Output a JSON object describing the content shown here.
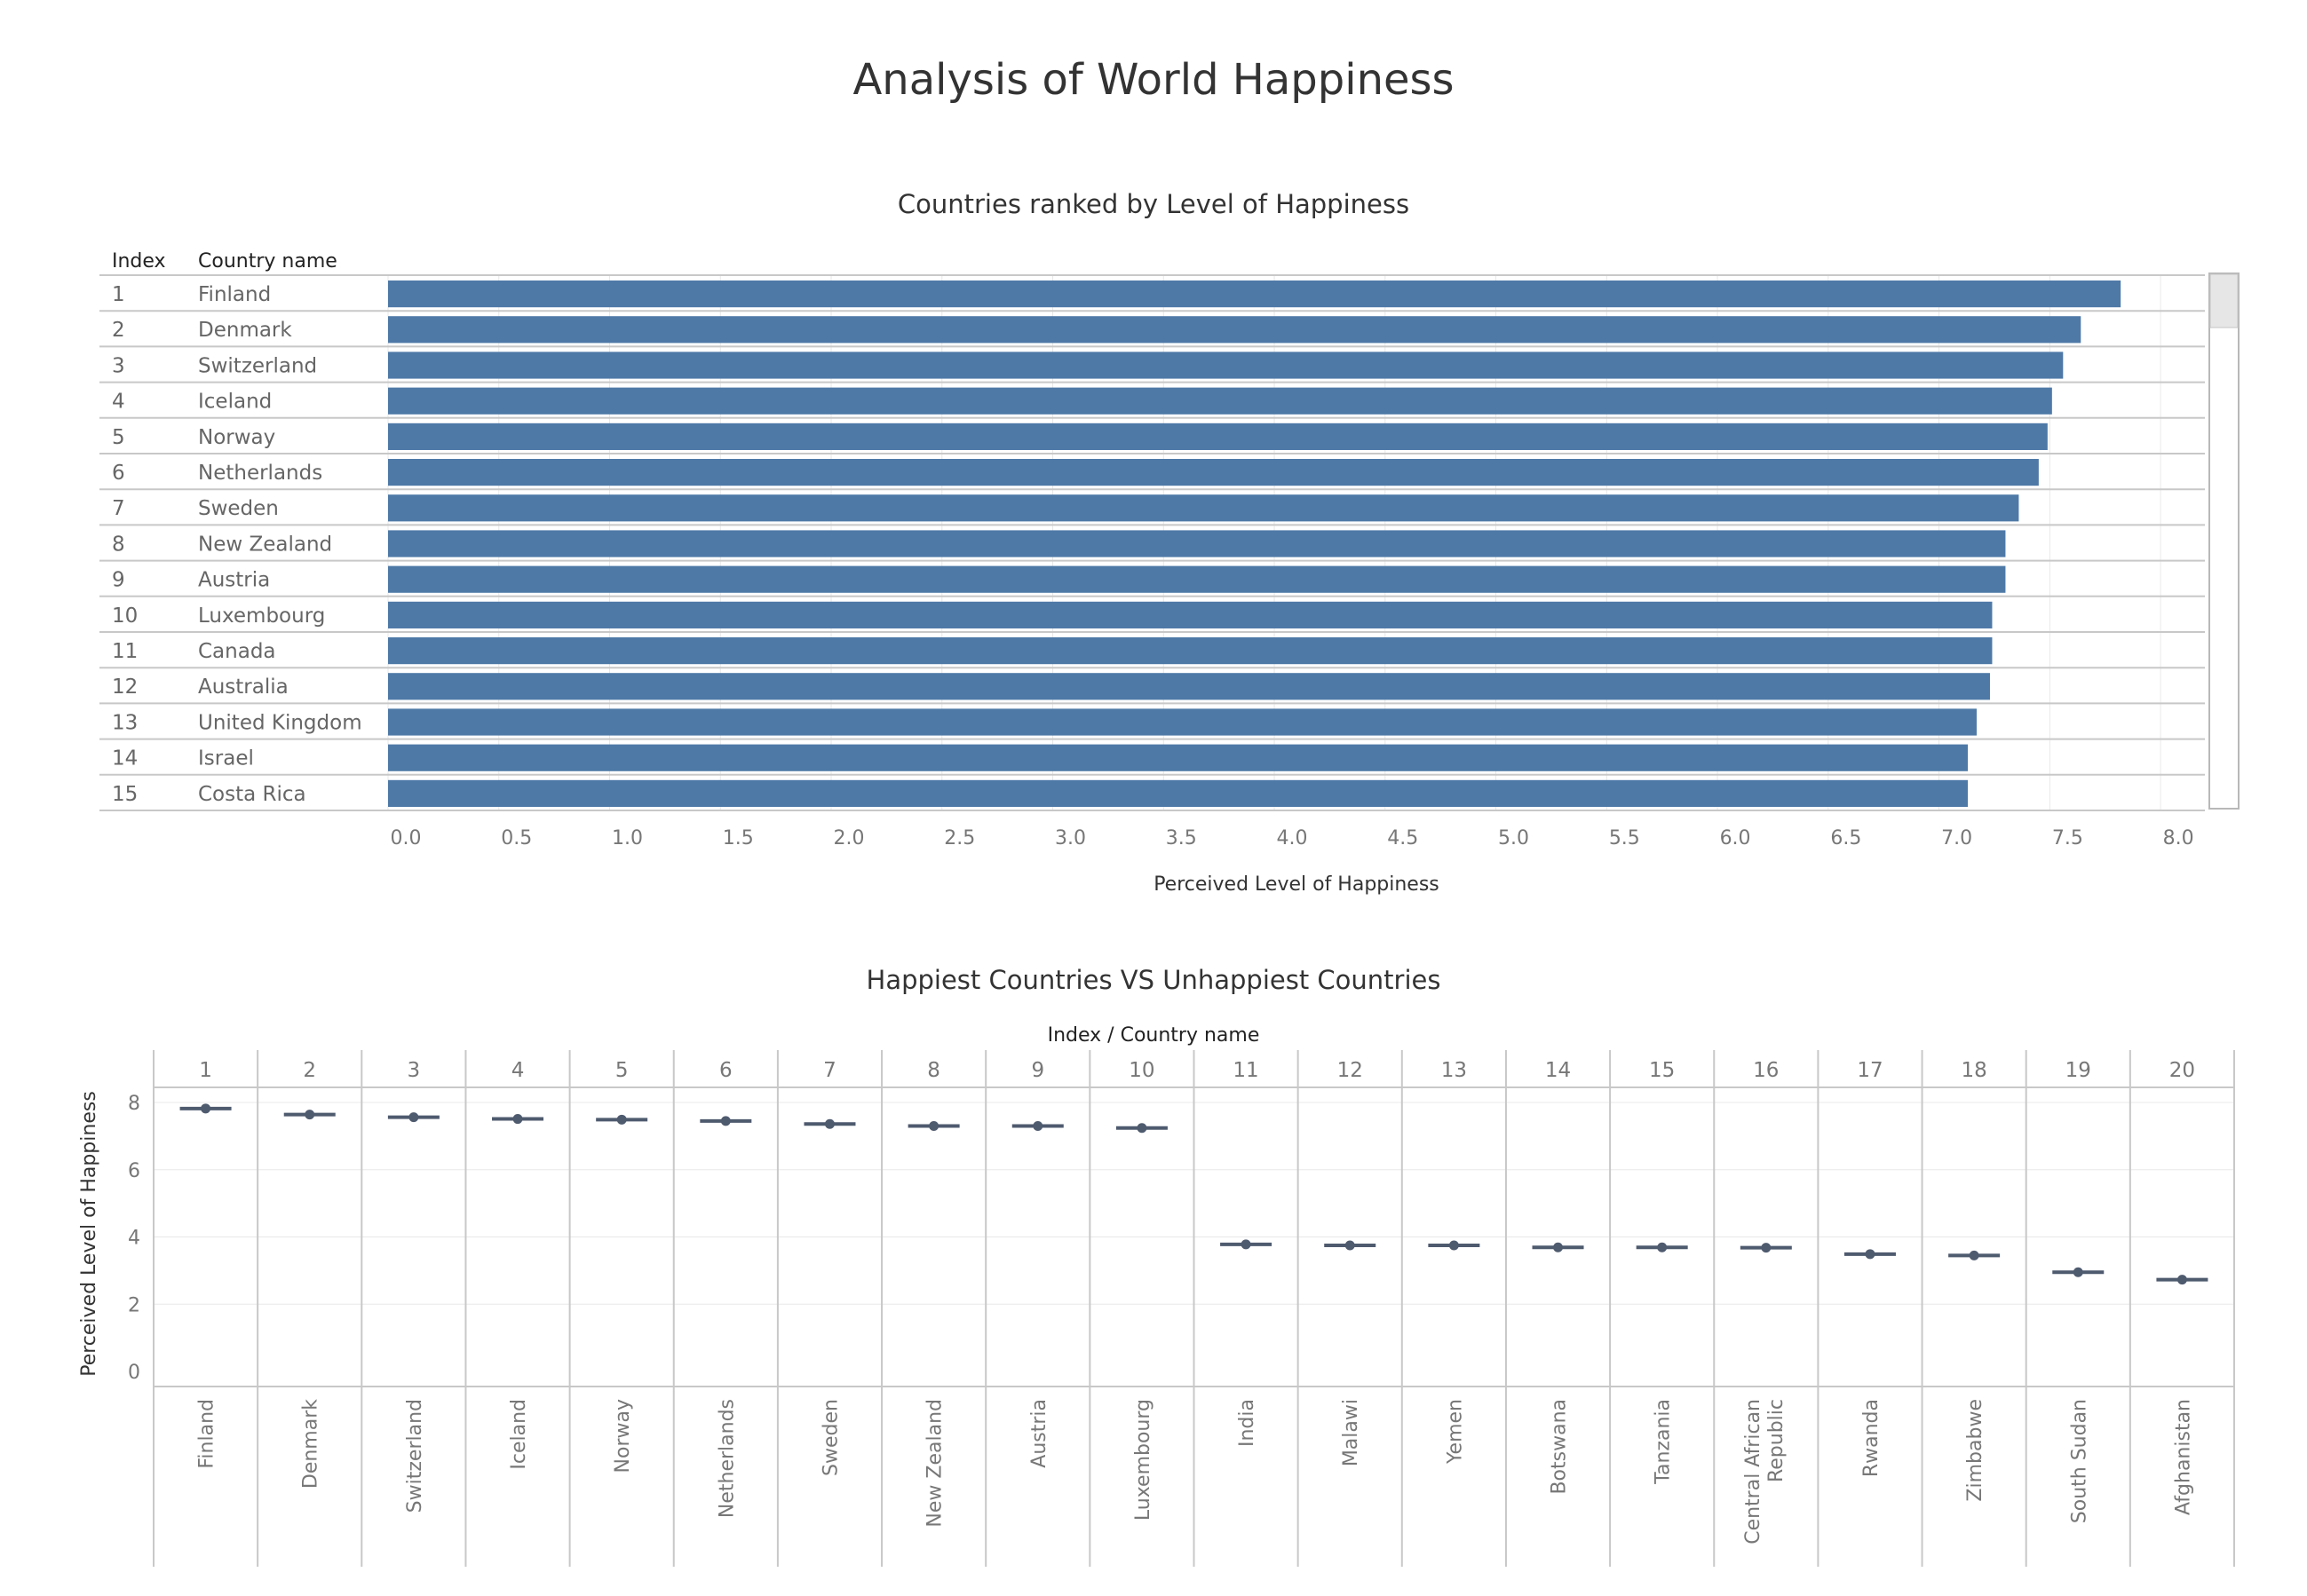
{
  "dashboard_title": "Analysis of World Happiness",
  "colors": {
    "bar": "#4e79a7",
    "mark": "#4e5a6e",
    "grid": "#e8e8e8",
    "divider": "#c8c8c8"
  },
  "chart_data": [
    {
      "type": "bar",
      "orientation": "horizontal",
      "title": "Countries ranked by Level of Happiness",
      "row_headers": [
        "Index",
        "Country name"
      ],
      "index": [
        "1",
        "2",
        "3",
        "4",
        "5",
        "6",
        "7",
        "8",
        "9",
        "10",
        "11",
        "12",
        "13",
        "14",
        "15"
      ],
      "categories": [
        "Finland",
        "Denmark",
        "Switzerland",
        "Iceland",
        "Norway",
        "Netherlands",
        "Sweden",
        "New Zealand",
        "Austria",
        "Luxembourg",
        "Canada",
        "Australia",
        "United Kingdom",
        "Israel",
        "Costa Rica"
      ],
      "values": [
        7.82,
        7.64,
        7.56,
        7.51,
        7.49,
        7.45,
        7.36,
        7.3,
        7.3,
        7.24,
        7.24,
        7.23,
        7.17,
        7.13,
        7.13
      ],
      "xlabel": "Perceived Level of Happiness",
      "xlim": [
        0,
        8.2
      ],
      "xticks": [
        "0.0",
        "0.5",
        "1.0",
        "1.5",
        "2.0",
        "2.5",
        "3.0",
        "3.5",
        "4.0",
        "4.5",
        "5.0",
        "5.5",
        "6.0",
        "6.5",
        "7.0",
        "7.5",
        "8.0"
      ]
    },
    {
      "type": "scatter",
      "title": "Happiest Countries VS Unhappiest Countries",
      "column_header": "Index  /  Country name",
      "index": [
        "1",
        "2",
        "3",
        "4",
        "5",
        "6",
        "7",
        "8",
        "9",
        "10",
        "11",
        "12",
        "13",
        "14",
        "15",
        "16",
        "17",
        "18",
        "19",
        "20"
      ],
      "categories": [
        "Finland",
        "Denmark",
        "Switzerland",
        "Iceland",
        "Norway",
        "Netherlands",
        "Sweden",
        "New Zealand",
        "Austria",
        "Luxembourg",
        "India",
        "Malawi",
        "Yemen",
        "Botswana",
        "Tanzania",
        "Central African Republic",
        "Rwanda",
        "Zimbabwe",
        "South Sudan",
        "Afghanistan"
      ],
      "values": [
        7.82,
        7.64,
        7.56,
        7.51,
        7.49,
        7.45,
        7.36,
        7.3,
        7.3,
        7.24,
        3.78,
        3.75,
        3.75,
        3.69,
        3.69,
        3.68,
        3.49,
        3.45,
        2.95,
        2.73
      ],
      "ylabel": "Perceived Level of Happiness",
      "ylim": [
        0,
        8.3
      ],
      "yticks": [
        "0",
        "2",
        "4",
        "6",
        "8"
      ]
    }
  ]
}
